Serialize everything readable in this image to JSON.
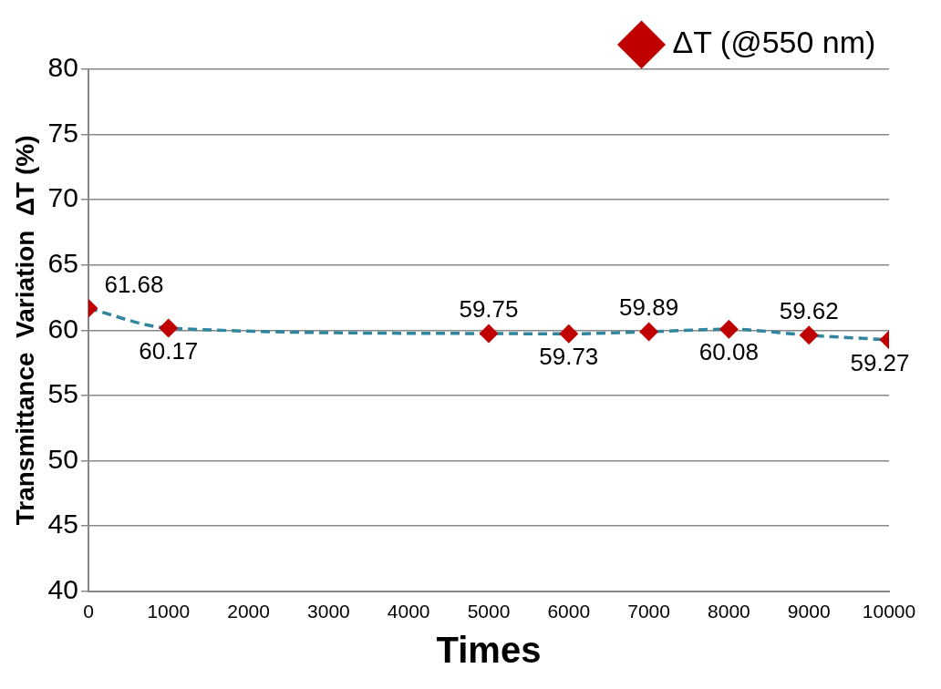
{
  "chart_data": {
    "type": "line",
    "xlabel": "Times",
    "ylabel": "Transmittance  Variation  ΔT (%)",
    "x": [
      0,
      1000,
      5000,
      6000,
      7000,
      8000,
      9000,
      10000
    ],
    "series": [
      {
        "name": "ΔT (@550 nm)",
        "color": "#31859c",
        "colors": [
          "#c00000",
          "#c00000",
          "#c00000",
          "#c00000",
          "#c00000",
          "#c00000",
          "#c00000",
          "#c00000"
        ],
        "values": [
          61.68,
          60.17,
          59.75,
          59.73,
          59.89,
          60.08,
          59.62,
          59.27
        ]
      }
    ],
    "marker": "diamond",
    "line_style": "dashed",
    "xlim": [
      0,
      10000
    ],
    "xticks": [
      0,
      1000,
      2000,
      3000,
      4000,
      5000,
      6000,
      7000,
      8000,
      9000,
      10000
    ],
    "ylim": [
      40,
      80
    ],
    "yticks": [
      40,
      45,
      50,
      55,
      60,
      65,
      70,
      75,
      80
    ],
    "grid": "y",
    "legend": "top right",
    "data_labels": true
  }
}
